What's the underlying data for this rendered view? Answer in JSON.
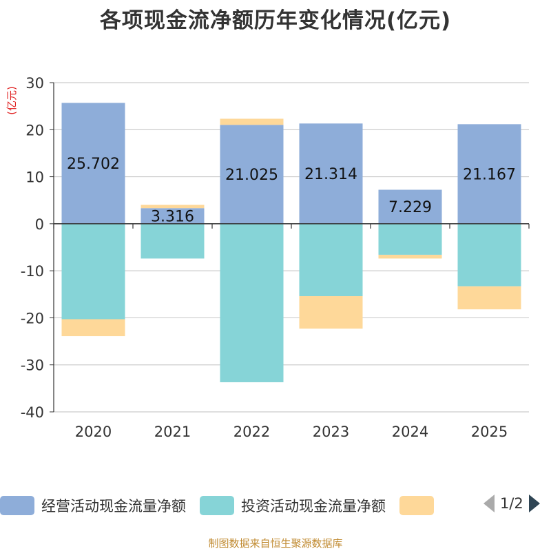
{
  "chart_data": {
    "type": "bar",
    "stacked": true,
    "title": "各项现金流净额历年变化情况(亿元)",
    "ylabel": "(亿元)",
    "xlabel": "",
    "ylim": [
      -40,
      30
    ],
    "yticks": [
      30,
      20,
      10,
      0,
      -10,
      -20,
      -30,
      -40
    ],
    "grid": true,
    "categories": [
      "2020",
      "2021",
      "2022",
      "2023",
      "2024",
      "2025"
    ],
    "series": [
      {
        "name": "经营活动现金流量净额",
        "color": "#8eadd9",
        "values": [
          25.702,
          3.316,
          21.025,
          21.314,
          7.229,
          21.167
        ],
        "labels": [
          "25.702",
          "3.316",
          "21.025",
          "21.314",
          "7.229",
          "21.167"
        ]
      },
      {
        "name": "投资活动现金流量净额",
        "color": "#86d4d7",
        "values": [
          -20.3,
          -7.4,
          -33.7,
          -15.4,
          -6.6,
          -13.3
        ]
      },
      {
        "name": "",
        "color": "#fed899",
        "values": [
          -3.6,
          0.7,
          1.3,
          -6.9,
          -0.8,
          -4.9
        ]
      }
    ],
    "legend_position": "bottom",
    "source_note": "制图数据来自恒生聚源数据库"
  },
  "legend": {
    "items": [
      {
        "label": "经营活动现金流量净额",
        "color": "#8eadd9"
      },
      {
        "label": "投资活动现金流量净额",
        "color": "#86d4d7"
      },
      {
        "label": "",
        "color": "#fed899"
      }
    ],
    "page_indicator": "1/2"
  }
}
